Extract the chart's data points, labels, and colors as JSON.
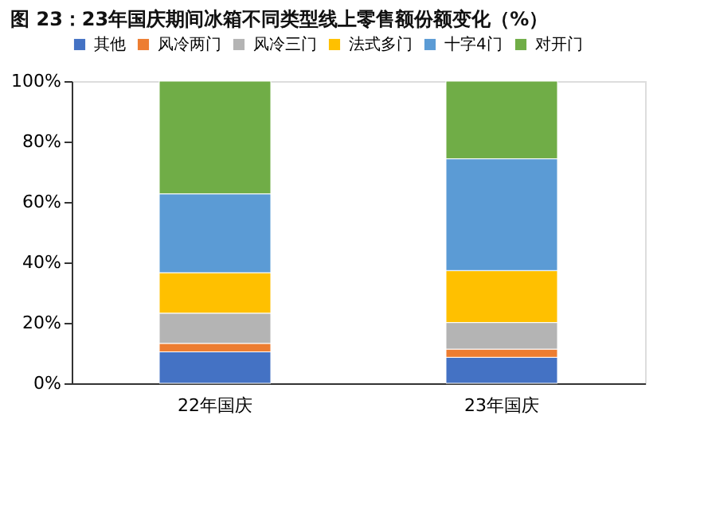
{
  "chart_data": {
    "type": "bar",
    "stacked": true,
    "title": "图 23：23年国庆期间冰箱不同类型线上零售额份额变化（%）",
    "categories": [
      "22年国庆",
      "23年国庆"
    ],
    "series": [
      {
        "name": "其他",
        "color": "#4472c4",
        "values": [
          10.4,
          8.6
        ]
      },
      {
        "name": "风冷两门",
        "color": "#ed7d31",
        "values": [
          2.8,
          2.7
        ]
      },
      {
        "name": "风冷三门",
        "color": "#b4b4b4",
        "values": [
          10.0,
          8.8
        ]
      },
      {
        "name": "法式多门",
        "color": "#ffc000",
        "values": [
          13.4,
          17.2
        ]
      },
      {
        "name": "十字4门",
        "color": "#5b9bd5",
        "values": [
          26.1,
          37.0
        ]
      },
      {
        "name": "对开门",
        "color": "#70ad47",
        "values": [
          37.3,
          25.7
        ]
      }
    ],
    "ylim": [
      0,
      100
    ],
    "yticks": [
      {
        "value": 0,
        "label": "0%"
      },
      {
        "value": 20,
        "label": "20%"
      },
      {
        "value": 40,
        "label": "40%"
      },
      {
        "value": 60,
        "label": "60%"
      },
      {
        "value": 80,
        "label": "80%"
      },
      {
        "value": 100,
        "label": "100%"
      }
    ],
    "grid": false,
    "legend": "top"
  }
}
